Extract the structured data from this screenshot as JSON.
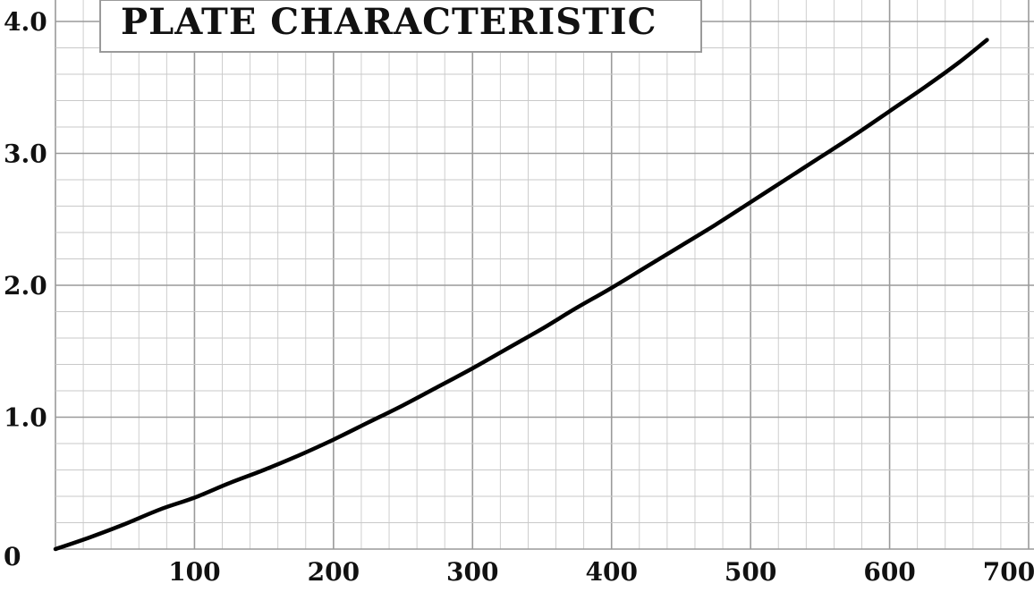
{
  "chart_data": {
    "type": "line",
    "title": "PLATE CHARACTERISTIC",
    "xlabel": "",
    "ylabel": "",
    "xlim": [
      0,
      700
    ],
    "ylim": [
      0,
      4.0
    ],
    "x_ticks": [
      100,
      200,
      300,
      400,
      500,
      600,
      700
    ],
    "x_tick_labels": [
      "100",
      "200",
      "300",
      "400",
      "500",
      "600",
      "700"
    ],
    "y_ticks": [
      0,
      1.0,
      2.0,
      3.0,
      4.0
    ],
    "y_tick_labels": [
      "0",
      "1.0",
      "2.0",
      "3.0",
      "4.0"
    ],
    "grid": true,
    "legend": "none",
    "series": [
      {
        "color": "#000000",
        "x": [
          0,
          25,
          50,
          75,
          100,
          125,
          150,
          175,
          200,
          225,
          250,
          275,
          300,
          325,
          350,
          375,
          400,
          425,
          450,
          475,
          500,
          525,
          550,
          575,
          600,
          625,
          650,
          670
        ],
        "y": [
          0,
          0.09,
          0.19,
          0.3,
          0.39,
          0.5,
          0.6,
          0.71,
          0.83,
          0.96,
          1.09,
          1.23,
          1.37,
          1.52,
          1.67,
          1.83,
          1.98,
          2.14,
          2.3,
          2.46,
          2.63,
          2.8,
          2.97,
          3.14,
          3.32,
          3.5,
          3.69,
          3.86
        ]
      }
    ]
  },
  "colors": {
    "background": "#ffffff",
    "minor_grid": "#c9c9c9",
    "major_grid": "#9a9a9a",
    "curve": "#000000",
    "text": "#111111"
  }
}
